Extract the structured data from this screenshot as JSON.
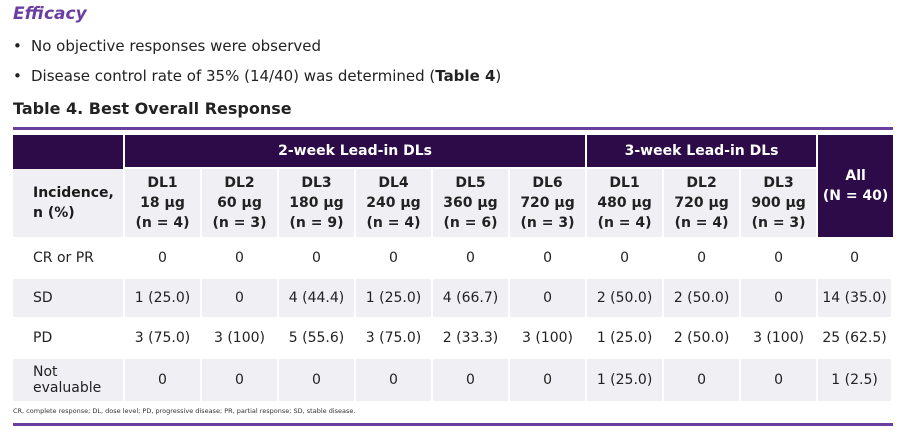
{
  "section_title": "Efficacy",
  "bullets": [
    {
      "text": "No objective responses were observed",
      "bold": ""
    },
    {
      "text": "Disease control rate of 35% (14/40) was determined (",
      "bold": "Table 4",
      "after": ")"
    }
  ],
  "table_title": "Table 4. Best Overall Response",
  "table": {
    "group_headers": [
      "2-week Lead-in DLs",
      "3-week Lead-in DLs"
    ],
    "incidence_label": [
      "Incidence,",
      "n (%)"
    ],
    "all_header": [
      "All",
      "(N = 40)"
    ],
    "columns": [
      {
        "dl": "DL1",
        "dose": "18 µg",
        "n": "(n = 4)"
      },
      {
        "dl": "DL2",
        "dose": "60 µg",
        "n": "(n = 3)"
      },
      {
        "dl": "DL3",
        "dose": "180 µg",
        "n": "(n = 9)"
      },
      {
        "dl": "DL4",
        "dose": "240 µg",
        "n": "(n = 4)"
      },
      {
        "dl": "DL5",
        "dose": "360 µg",
        "n": "(n = 6)"
      },
      {
        "dl": "DL6",
        "dose": "720 µg",
        "n": "(n = 3)"
      },
      {
        "dl": "DL1",
        "dose": "480 µg",
        "n": "(n = 4)"
      },
      {
        "dl": "DL2",
        "dose": "720 µg",
        "n": "(n = 4)"
      },
      {
        "dl": "DL3",
        "dose": "900 µg",
        "n": "(n = 3)"
      }
    ],
    "rows": [
      {
        "label": [
          "CR or PR"
        ],
        "values": [
          "0",
          "0",
          "0",
          "0",
          "0",
          "0",
          "0",
          "0",
          "0",
          "0"
        ]
      },
      {
        "label": [
          "SD"
        ],
        "values": [
          "1 (25.0)",
          "0",
          "4 (44.4)",
          "1 (25.0)",
          "4 (66.7)",
          "0",
          "2 (50.0)",
          "2 (50.0)",
          "0",
          "14 (35.0)"
        ]
      },
      {
        "label": [
          "PD"
        ],
        "values": [
          "3 (75.0)",
          "3 (100)",
          "5 (55.6)",
          "3 (75.0)",
          "2 (33.3)",
          "3 (100)",
          "1 (25.0)",
          "2 (50.0)",
          "3 (100)",
          "25 (62.5)"
        ]
      },
      {
        "label": [
          "Not",
          "evaluable"
        ],
        "values": [
          "0",
          "0",
          "0",
          "0",
          "0",
          "0",
          "1 (25.0)",
          "0",
          "0",
          "1 (2.5)"
        ]
      }
    ]
  },
  "footnote": "CR, complete response;  DL, dose level; PD, progressive disease; PR, partial response; SD, stable disease.",
  "colors": {
    "accent": "#6a3fa0",
    "header_bg": "#2d0b48",
    "band_bg": "#f0eff3"
  }
}
